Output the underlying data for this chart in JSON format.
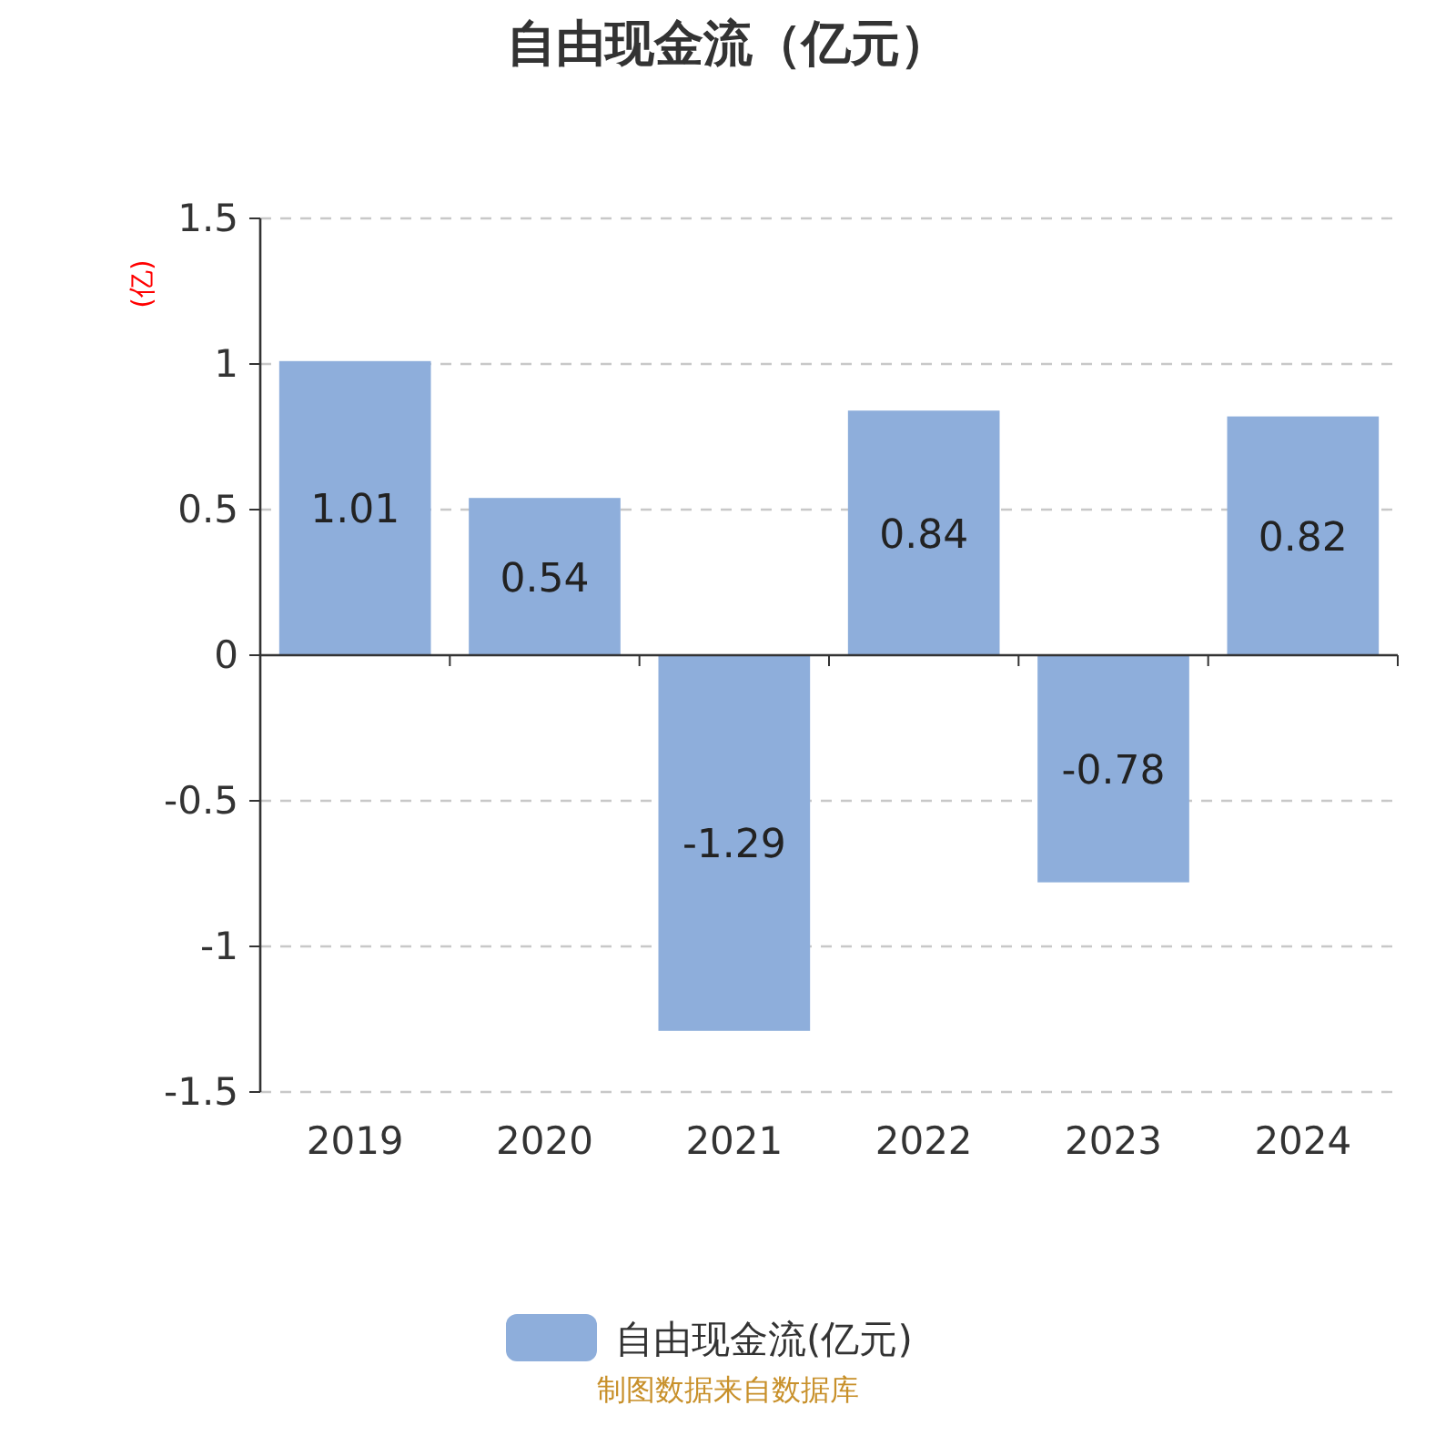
{
  "chart_data": {
    "type": "bar",
    "title": "自由现金流（亿元）",
    "ylabel": "(亿)",
    "categories": [
      "2019",
      "2020",
      "2021",
      "2022",
      "2023",
      "2024"
    ],
    "series": [
      {
        "name": "自由现金流(亿元)",
        "color": "#8eaedb",
        "values": [
          1.01,
          0.54,
          -1.29,
          0.84,
          -0.78,
          0.82
        ]
      }
    ],
    "ylim": [
      -1.5,
      1.5
    ],
    "yticks": [
      -1.5,
      -1,
      -0.5,
      0,
      0.5,
      1,
      1.5
    ],
    "grid": "y",
    "legend": "bottom",
    "data_labels": true,
    "annotations": [
      "制图数据来自数据库"
    ]
  }
}
